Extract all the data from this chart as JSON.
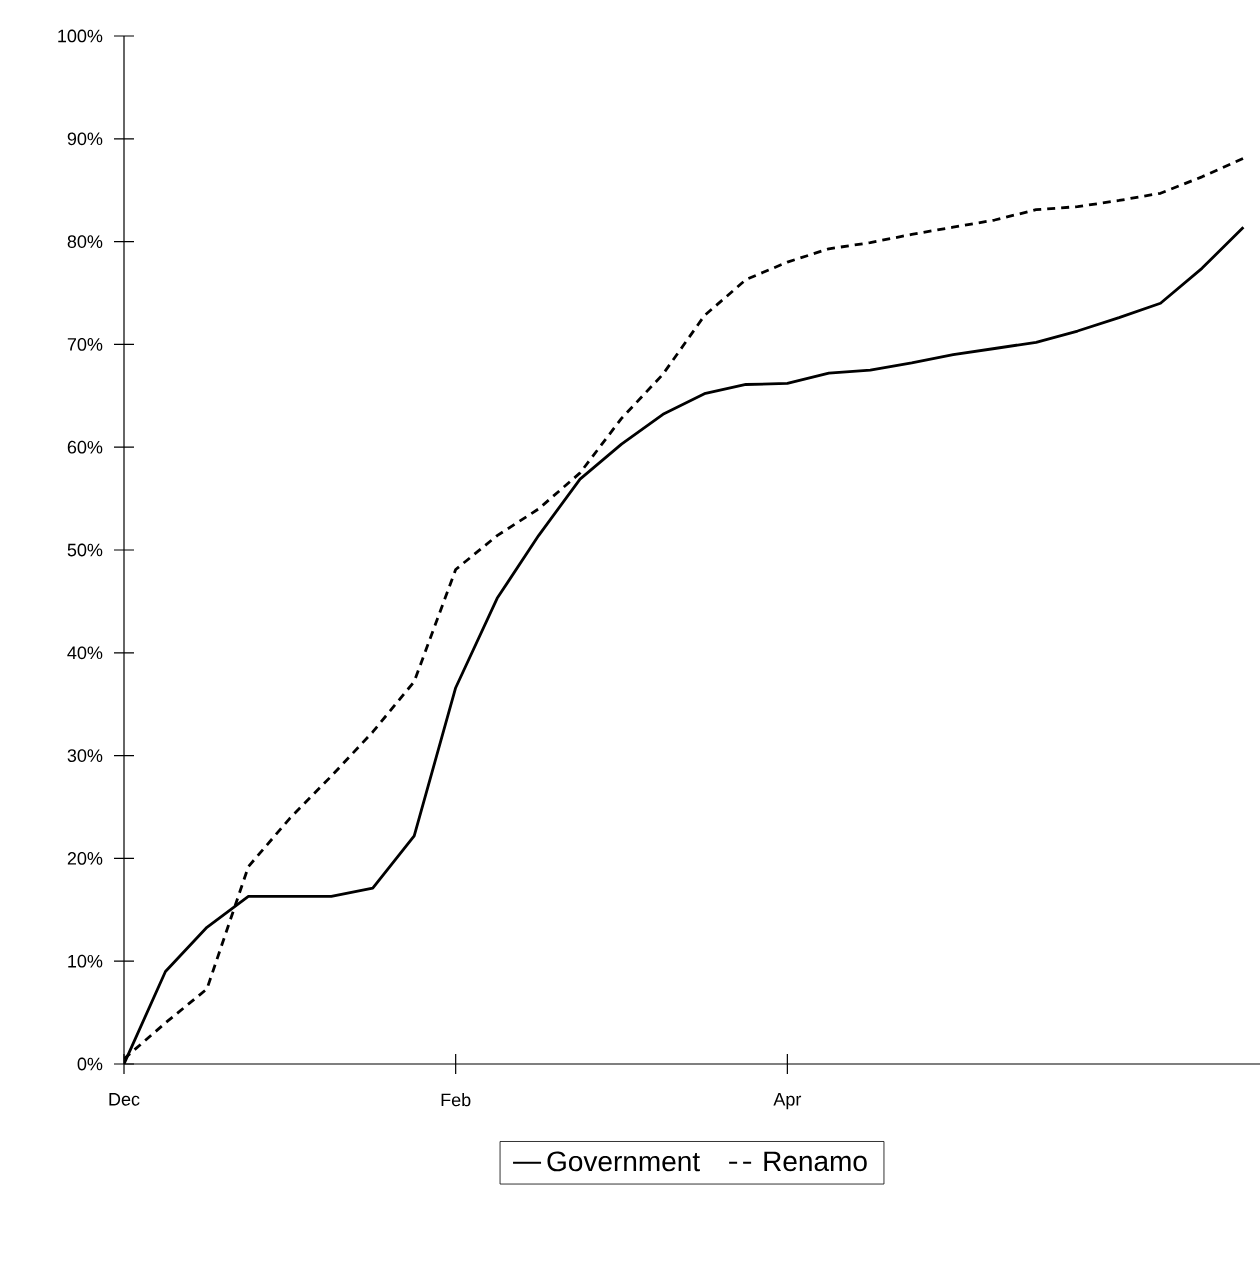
{
  "chart_data": {
    "type": "line",
    "categories": [
      "Dec",
      null,
      null,
      null,
      null,
      null,
      null,
      null,
      "Feb",
      null,
      null,
      null,
      null,
      null,
      null,
      null,
      "Apr",
      null,
      null,
      null,
      null,
      null,
      null,
      null,
      null,
      null,
      null,
      null
    ],
    "ylim": [
      0,
      100
    ],
    "yticks": [
      {
        "value": 0,
        "label": "0%"
      },
      {
        "value": 10,
        "label": "10%"
      },
      {
        "value": 20,
        "label": "20%"
      },
      {
        "value": 30,
        "label": "30%"
      },
      {
        "value": 40,
        "label": "40%"
      },
      {
        "value": 50,
        "label": "50%"
      },
      {
        "value": 60,
        "label": "60%"
      },
      {
        "value": 70,
        "label": "70%"
      },
      {
        "value": 80,
        "label": "80%"
      },
      {
        "value": 90,
        "label": "90%"
      },
      {
        "value": 100,
        "label": "100%"
      }
    ],
    "grid": false,
    "legend": "bottom",
    "marker": "none",
    "series": [
      {
        "name": "Government",
        "color": "#000000",
        "line_style": "solid",
        "values": [
          0,
          9,
          13.3,
          16.3,
          16.3,
          16.3,
          17.1,
          22.2,
          36.6,
          45.3,
          51.4,
          56.9,
          60.3,
          63.2,
          65.2,
          66.1,
          66.2,
          67.2,
          67.5,
          68.2,
          69,
          69.6,
          70.2,
          71.3,
          72.6,
          74,
          77.4,
          81.4
        ]
      },
      {
        "name": "Renamo",
        "color": "#000000",
        "line_style": "dashed",
        "values": [
          0.5,
          4,
          7.3,
          19.2,
          23.9,
          28,
          32.3,
          37.2,
          48.1,
          51.4,
          54,
          57.5,
          62.8,
          67.1,
          72.8,
          76.3,
          78,
          79.3,
          79.9,
          80.7,
          81.4,
          82.1,
          83.1,
          83.4,
          84,
          84.7,
          86.3,
          88.1
        ]
      }
    ]
  }
}
